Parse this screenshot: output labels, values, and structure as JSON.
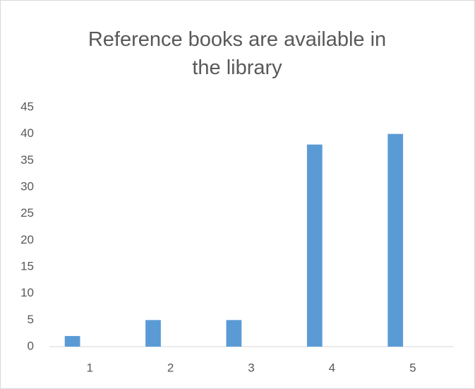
{
  "chart_data": {
    "type": "bar",
    "title": "Reference books are available in the library",
    "categories": [
      "1",
      "2",
      "3",
      "4",
      "5"
    ],
    "values": [
      2,
      5,
      5,
      38,
      40
    ],
    "color": "#5b9bd5",
    "ylim": [
      0,
      45
    ],
    "yticks": [
      0,
      5,
      10,
      15,
      20,
      25,
      30,
      35,
      40,
      45
    ],
    "grid": false
  }
}
